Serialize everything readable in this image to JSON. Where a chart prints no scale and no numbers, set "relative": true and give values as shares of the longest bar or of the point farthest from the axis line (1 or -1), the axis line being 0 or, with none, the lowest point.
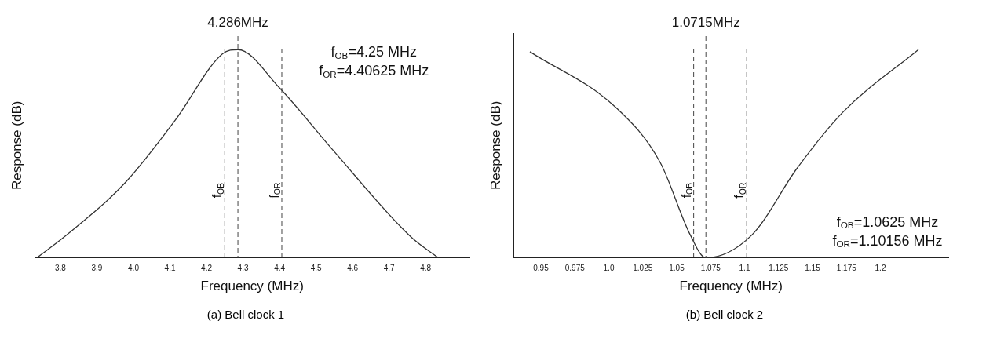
{
  "chart_data": [
    {
      "type": "line",
      "title": "(a) Bell clock 1",
      "xlabel": "Frequency (MHz)",
      "ylabel": "Response (dB)",
      "relative": true,
      "grid": false,
      "legend": false,
      "marker": "none",
      "line_style": "solid",
      "x": [
        3.735,
        3.81,
        3.977,
        4.114,
        4.244,
        4.286,
        4.398,
        4.545,
        4.76,
        4.835
      ],
      "series": [
        {
          "color": "#333333",
          "values": [
            0,
            0.1,
            0.36,
            0.66,
            0.98,
            1,
            0.82,
            0.52,
            0.1,
            0
          ]
        }
      ],
      "xlim": [
        3.73,
        4.92
      ],
      "xticks": [
        {
          "value": 3.8,
          "label": "3.8"
        },
        {
          "value": 3.9,
          "label": "3.9"
        },
        {
          "value": 4.0,
          "label": "4.0"
        },
        {
          "value": 4.1,
          "label": "4.1"
        },
        {
          "value": 4.2,
          "label": "4.2"
        },
        {
          "value": 4.3,
          "label": "4.3"
        },
        {
          "value": 4.4,
          "label": "4.4"
        },
        {
          "value": 4.5,
          "label": "4.5"
        },
        {
          "value": 4.6,
          "label": "4.6"
        },
        {
          "value": 4.7,
          "label": "4.7"
        },
        {
          "value": 4.8,
          "label": "4.8"
        }
      ],
      "ref_lines": [
        {
          "axis": "x",
          "value": 4.286,
          "label": "4.286MHz",
          "line_style": "dashed"
        },
        {
          "axis": "x",
          "value": 4.25,
          "label": "f$_{OB}$",
          "line_style": "dashed"
        },
        {
          "axis": "x",
          "value": 4.40625,
          "label": "f$_{OR}$",
          "line_style": "dashed"
        }
      ],
      "annotations": [
        "f$_{OB}$=4.25 MHz",
        "f$_{OR}$=4.40625 MHz"
      ]
    },
    {
      "type": "line",
      "title": "(b) Bell clock 2",
      "xlabel": "Frequency (MHz)",
      "ylabel": "Response (dB)",
      "relative": true,
      "grid": false,
      "legend": false,
      "marker": "none",
      "line_style": "solid",
      "x": [
        0.9419,
        1.0056,
        1.0377,
        1.06,
        1.0715,
        1.1054,
        1.1386,
        1.1724,
        1.228
      ],
      "series": [
        {
          "color": "#333333",
          "values": [
            0.99,
            0.72,
            0.46,
            0.11,
            0,
            0.11,
            0.43,
            0.7,
            1
          ]
        }
      ],
      "xlim": [
        0.93,
        1.25
      ],
      "xticks": [
        0.95,
        0.975,
        {
          "value": 1,
          "label": "1.0"
        },
        1.025,
        1.05,
        1.075,
        {
          "value": 1.1,
          "label": "1.1"
        },
        1.125,
        1.15,
        1.175,
        {
          "value": 1.2,
          "label": "1.2"
        }
      ],
      "ref_lines": [
        {
          "axis": "x",
          "value": 1.0715,
          "label": "1.0715MHz",
          "line_style": "dashed"
        },
        {
          "axis": "x",
          "value": 1.0625,
          "label": "f$_{OB}$",
          "line_style": "dashed"
        },
        {
          "axis": "x",
          "value": 1.10156,
          "label": "f$_{OR}$",
          "line_style": "dashed"
        }
      ],
      "annotations": [
        "f$_{OB}$=1.0625 MHz",
        "f$_{OR}$=1.10156 MHz"
      ]
    }
  ]
}
